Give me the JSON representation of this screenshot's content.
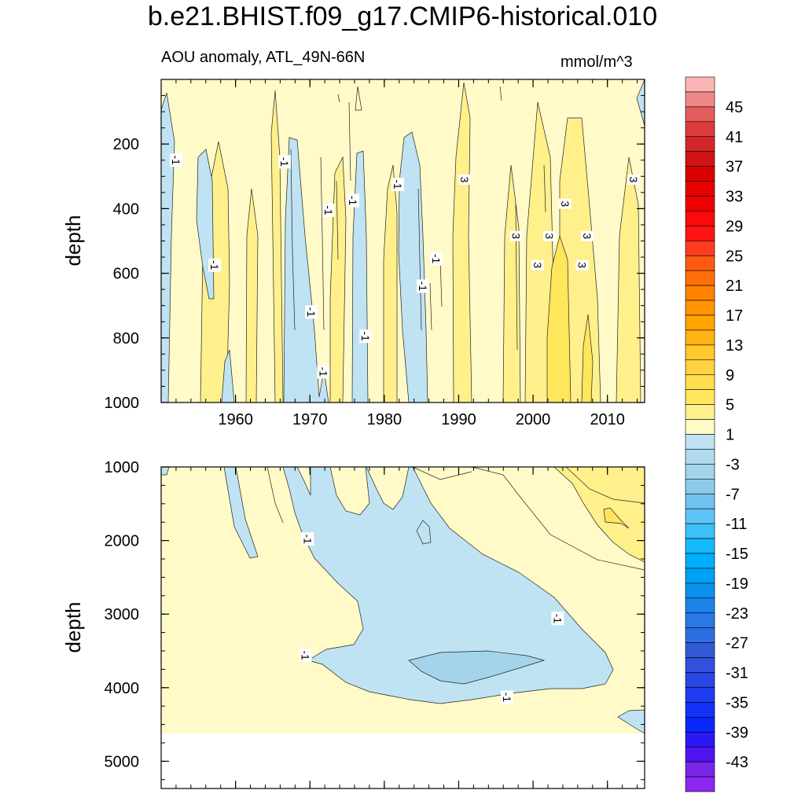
{
  "title": "b.e21.BHIST.f09_g17.CMIP6-historical.010",
  "subtitle_left": "AOU anomaly, ATL_49N-66N",
  "units": "mmol/m^3",
  "colors": {
    "axis": "#000000",
    "no_data": "#ffffff",
    "pos_1_3": "#fffac8",
    "pos_3_5": "#fff08c",
    "pos_5_7": "#ffe65a",
    "neg_m1_m3": "#bfe3f2",
    "neg_core": "#a3d4ec"
  },
  "chart_data": [
    {
      "type": "contour",
      "panel": "upper",
      "title": "AOU anomaly, ATL_49N-66N",
      "units": "mmol/m^3",
      "xlabel": "",
      "ylabel": "depth",
      "xlim": [
        1950,
        2015
      ],
      "ylim": [
        1000,
        0
      ],
      "x_ticks": [
        1960,
        1970,
        1980,
        1990,
        2000,
        2010
      ],
      "y_ticks": [
        200,
        400,
        600,
        800,
        1000
      ],
      "contour_labels": [
        {
          "x": 1952,
          "depth": 250,
          "text": "-1"
        },
        {
          "x": 1966.6,
          "depth": 255,
          "text": "-1"
        },
        {
          "x": 1957.2,
          "depth": 575,
          "text": "-1"
        },
        {
          "x": 1972.5,
          "depth": 405,
          "text": "-1"
        },
        {
          "x": 1975.8,
          "depth": 375,
          "text": "-1"
        },
        {
          "x": 1981.8,
          "depth": 325,
          "text": "-1"
        },
        {
          "x": 1990.8,
          "depth": 310,
          "text": "3"
        },
        {
          "x": 2013.5,
          "depth": 310,
          "text": "3"
        },
        {
          "x": 2004.3,
          "depth": 385,
          "text": "3"
        },
        {
          "x": 1997.7,
          "depth": 485,
          "text": "3"
        },
        {
          "x": 2002.2,
          "depth": 485,
          "text": "3"
        },
        {
          "x": 2007.3,
          "depth": 485,
          "text": "3"
        },
        {
          "x": 1987,
          "depth": 555,
          "text": "-1"
        },
        {
          "x": 2000.6,
          "depth": 575,
          "text": "3"
        },
        {
          "x": 2006.6,
          "depth": 575,
          "text": "3"
        },
        {
          "x": 1985.2,
          "depth": 640,
          "text": "-1"
        },
        {
          "x": 1970.2,
          "depth": 720,
          "text": "-1"
        },
        {
          "x": 1977.5,
          "depth": 795,
          "text": "-1"
        },
        {
          "x": 1971.8,
          "depth": 905,
          "text": "-1"
        }
      ]
    },
    {
      "type": "contour",
      "panel": "lower",
      "xlabel": "",
      "ylabel": "depth",
      "xlim": [
        1950,
        2015
      ],
      "ylim": [
        5370,
        1000
      ],
      "x_ticks": [
        1960,
        1970,
        1980,
        1990,
        2000,
        2010
      ],
      "y_ticks": [
        1000,
        2000,
        3000,
        4000,
        5000
      ],
      "data_bottom_depth": 4630,
      "contour_labels": [
        {
          "x": 1969.7,
          "depth": 1980,
          "text": "-1"
        },
        {
          "x": 2003.3,
          "depth": 3060,
          "text": "-1"
        },
        {
          "x": 1969.4,
          "depth": 3560,
          "text": "-1"
        },
        {
          "x": 1996.5,
          "depth": 4130,
          "text": "-1"
        }
      ]
    }
  ],
  "colorbar": {
    "labels": [
      "45",
      "41",
      "37",
      "33",
      "29",
      "25",
      "21",
      "17",
      "13",
      "9",
      "5",
      "1",
      "-3",
      "-7",
      "-11",
      "-15",
      "-19",
      "-23",
      "-27",
      "-31",
      "-35",
      "-39",
      "-43"
    ],
    "levels": [
      47,
      45,
      43,
      41,
      39,
      37,
      35,
      33,
      31,
      29,
      27,
      25,
      23,
      21,
      19,
      17,
      15,
      13,
      11,
      9,
      7,
      5,
      3,
      1,
      -1,
      -3,
      -5,
      -7,
      -9,
      -11,
      -13,
      -15,
      -17,
      -19,
      -21,
      -23,
      -25,
      -27,
      -29,
      -31,
      -33,
      -35,
      -37,
      -39,
      -41,
      -43,
      -45
    ],
    "colors": [
      "#fcb4b4",
      "#f08888",
      "#e45c5c",
      "#dc3c3c",
      "#d42828",
      "#d21414",
      "#dc0000",
      "#e60000",
      "#f00000",
      "#fa0a0a",
      "#ff1414",
      "#ff3c1e",
      "#ff5a14",
      "#ff6e0a",
      "#ff8200",
      "#ff9600",
      "#ffa500",
      "#ffb414",
      "#ffc82d",
      "#ffd241",
      "#ffdc50",
      "#ffe65a",
      "#fff08c",
      "#fffac8",
      "#bfe3f2",
      "#b0dbef",
      "#a3d4ec",
      "#8ecbea",
      "#72c2f0",
      "#5ec4f5",
      "#3cc0f8",
      "#14b9fa",
      "#00affa",
      "#00a0f5",
      "#0a91f0",
      "#1e82eb",
      "#2878e6",
      "#2d6ee1",
      "#325ad7",
      "#3250dc",
      "#2846e6",
      "#1e3cf0",
      "#1432f5",
      "#0a28fa",
      "#2a18f5",
      "#5014f0",
      "#7828e6",
      "#8c28f0"
    ]
  }
}
